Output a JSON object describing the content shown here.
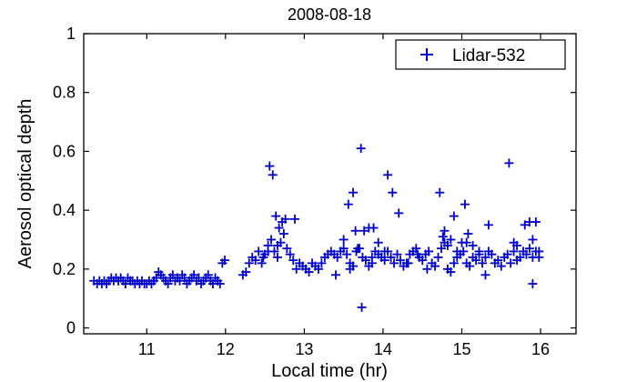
{
  "chart_data": {
    "type": "scatter",
    "title": "2008-08-18",
    "xlabel": "Local time (hr)",
    "ylabel": "Aerosol optical depth",
    "xlim": [
      10.2,
      16.45
    ],
    "ylim": [
      -0.02,
      1.0
    ],
    "xticks": [
      11,
      12,
      13,
      14,
      15,
      16
    ],
    "yticks": [
      0,
      0.2,
      0.4,
      0.6,
      0.8,
      1
    ],
    "ytick_labels": [
      "0",
      "0.2",
      "0.4",
      "0.6",
      "0.8",
      "1"
    ],
    "grid": false,
    "legend_position": "top-right",
    "colors": {
      "series": "#0000cc",
      "axes": "#000000"
    },
    "series": [
      {
        "name": "Lidar-532",
        "marker": "plus",
        "x": [
          10.33,
          10.37,
          10.4,
          10.43,
          10.46,
          10.49,
          10.52,
          10.55,
          10.58,
          10.61,
          10.64,
          10.67,
          10.7,
          10.73,
          10.76,
          10.79,
          10.82,
          10.85,
          10.88,
          10.91,
          10.94,
          10.97,
          11.0,
          11.03,
          11.06,
          11.09,
          11.12,
          11.15,
          11.18,
          11.21,
          11.24,
          11.27,
          11.3,
          11.33,
          11.36,
          11.39,
          11.42,
          11.45,
          11.48,
          11.51,
          11.54,
          11.57,
          11.6,
          11.63,
          11.66,
          11.69,
          11.72,
          11.75,
          11.78,
          11.81,
          11.84,
          11.87,
          11.9,
          11.93,
          11.96,
          11.99,
          12.22,
          12.26,
          12.3,
          12.34,
          12.38,
          12.42,
          12.46,
          12.5,
          12.54,
          12.58,
          12.62,
          12.66,
          12.7,
          12.74,
          12.78,
          12.82,
          12.86,
          12.9,
          12.94,
          12.98,
          13.02,
          13.06,
          13.1,
          13.14,
          13.18,
          13.22,
          13.26,
          13.3,
          13.34,
          13.38,
          13.42,
          13.46,
          13.5,
          13.54,
          13.58,
          13.62,
          13.66,
          13.7,
          13.74,
          13.78,
          13.82,
          13.86,
          13.9,
          13.94,
          13.98,
          14.02,
          14.06,
          14.1,
          14.14,
          14.18,
          14.22,
          14.26,
          14.3,
          14.34,
          14.38,
          14.42,
          14.46,
          14.5,
          14.54,
          14.58,
          14.62,
          14.66,
          14.7,
          14.74,
          14.78,
          14.82,
          14.86,
          14.9,
          14.94,
          14.98,
          15.02,
          15.06,
          15.1,
          15.14,
          15.18,
          15.22,
          15.26,
          15.3,
          15.34,
          15.38,
          15.42,
          15.46,
          15.5,
          15.54,
          15.58,
          15.62,
          15.66,
          15.7,
          15.74,
          15.78,
          15.82,
          15.86,
          15.9,
          15.94,
          15.98,
          12.56,
          12.6,
          12.64,
          12.68,
          12.72,
          12.76,
          12.88,
          13.56,
          13.62,
          13.65,
          13.72,
          13.76,
          13.82,
          13.88,
          14.06,
          14.12,
          14.2,
          14.72,
          14.76,
          14.78,
          14.82,
          14.86,
          14.94,
          15.0,
          15.04,
          15.08,
          15.14,
          15.22,
          15.34,
          15.6,
          15.66,
          15.8,
          15.86,
          15.9,
          15.94,
          15.98,
          13.73,
          15.9,
          12.48,
          12.54,
          12.66,
          13.4,
          13.5,
          13.58,
          13.68,
          13.86,
          13.94,
          14.02,
          14.32,
          14.44,
          14.56,
          14.9,
          15.06,
          15.3,
          15.7
        ],
        "y": [
          0.16,
          0.15,
          0.16,
          0.15,
          0.16,
          0.15,
          0.16,
          0.17,
          0.16,
          0.17,
          0.16,
          0.17,
          0.16,
          0.15,
          0.17,
          0.16,
          0.16,
          0.15,
          0.16,
          0.15,
          0.16,
          0.15,
          0.15,
          0.16,
          0.15,
          0.16,
          0.17,
          0.19,
          0.18,
          0.17,
          0.16,
          0.15,
          0.17,
          0.18,
          0.16,
          0.17,
          0.16,
          0.18,
          0.17,
          0.15,
          0.16,
          0.17,
          0.18,
          0.16,
          0.17,
          0.15,
          0.16,
          0.17,
          0.18,
          0.16,
          0.15,
          0.17,
          0.16,
          0.15,
          0.22,
          0.23,
          0.18,
          0.19,
          0.22,
          0.24,
          0.23,
          0.26,
          0.22,
          0.25,
          0.28,
          0.3,
          0.26,
          0.24,
          0.29,
          0.32,
          0.27,
          0.25,
          0.23,
          0.2,
          0.22,
          0.21,
          0.2,
          0.19,
          0.22,
          0.21,
          0.2,
          0.22,
          0.24,
          0.25,
          0.26,
          0.25,
          0.24,
          0.26,
          0.27,
          0.25,
          0.22,
          0.21,
          0.26,
          0.27,
          0.24,
          0.23,
          0.21,
          0.22,
          0.26,
          0.25,
          0.24,
          0.23,
          0.26,
          0.24,
          0.22,
          0.25,
          0.23,
          0.21,
          0.22,
          0.25,
          0.26,
          0.27,
          0.24,
          0.23,
          0.25,
          0.26,
          0.22,
          0.21,
          0.24,
          0.27,
          0.29,
          0.2,
          0.19,
          0.22,
          0.24,
          0.25,
          0.26,
          0.22,
          0.21,
          0.24,
          0.23,
          0.25,
          0.22,
          0.24,
          0.26,
          0.25,
          0.22,
          0.23,
          0.21,
          0.24,
          0.25,
          0.22,
          0.26,
          0.28,
          0.24,
          0.26,
          0.25,
          0.27,
          0.24,
          0.26,
          0.24,
          0.55,
          0.52,
          0.38,
          0.34,
          0.36,
          0.37,
          0.37,
          0.42,
          0.46,
          0.33,
          0.61,
          0.33,
          0.34,
          0.34,
          0.52,
          0.46,
          0.39,
          0.46,
          0.31,
          0.33,
          0.28,
          0.3,
          0.26,
          0.29,
          0.42,
          0.32,
          0.28,
          0.26,
          0.35,
          0.56,
          0.29,
          0.35,
          0.36,
          0.3,
          0.36,
          0.26,
          0.07,
          0.15,
          0.24,
          0.26,
          0.28,
          0.18,
          0.3,
          0.2,
          0.27,
          0.24,
          0.29,
          0.26,
          0.22,
          0.25,
          0.2,
          0.38,
          0.29,
          0.18,
          0.23
        ]
      }
    ]
  }
}
